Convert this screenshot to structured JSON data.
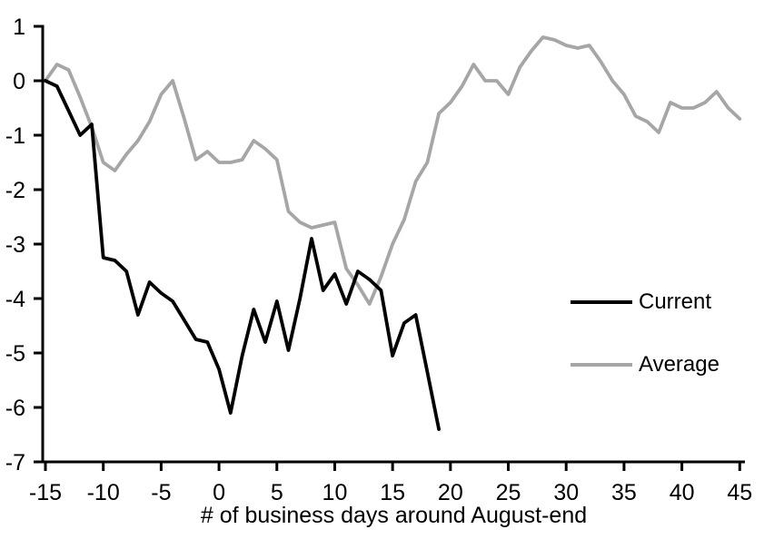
{
  "figure": {
    "background": "#ffffff",
    "axis_color": "#000000",
    "text_color": "#000000"
  },
  "legend": {
    "items": [
      {
        "label": "Current",
        "color": "#000000"
      },
      {
        "label": "Average",
        "color": "#a6a6a6"
      }
    ]
  },
  "chart_data": {
    "type": "line",
    "title": "",
    "xlabel": "# of business days around August-end",
    "ylabel": "",
    "xlim": [
      -15,
      45
    ],
    "ylim": [
      -7,
      1
    ],
    "x_ticks": [
      -15,
      -10,
      -5,
      0,
      5,
      10,
      15,
      20,
      25,
      30,
      35,
      40,
      45
    ],
    "y_ticks": [
      1,
      0,
      -1,
      -2,
      -3,
      -4,
      -5,
      -6,
      -7
    ],
    "grid": false,
    "legend_position": "right-middle",
    "series": [
      {
        "name": "Current",
        "color": "#000000",
        "stroke_width": 3.8,
        "x": [
          -15,
          -14,
          -13,
          -12,
          -11,
          -10,
          -9,
          -8,
          -7,
          -6,
          -5,
          -4,
          -3,
          -2,
          -1,
          0,
          1,
          2,
          3,
          4,
          5,
          6,
          7,
          8,
          9,
          10,
          11,
          12,
          13,
          14,
          15,
          16,
          17,
          18,
          19
        ],
        "y": [
          0,
          -0.1,
          -0.55,
          -1.0,
          -0.8,
          -3.25,
          -3.3,
          -3.5,
          -4.3,
          -3.7,
          -3.9,
          -4.05,
          -4.4,
          -4.75,
          -4.8,
          -5.3,
          -6.1,
          -5.05,
          -4.2,
          -4.8,
          -4.05,
          -4.95,
          -4.0,
          -2.9,
          -3.85,
          -3.55,
          -4.1,
          -3.5,
          -3.65,
          -3.85,
          -5.05,
          -4.45,
          -4.3,
          -5.35,
          -6.4
        ]
      },
      {
        "name": "Average",
        "color": "#a6a6a6",
        "stroke_width": 3.8,
        "x": [
          -15,
          -14,
          -13,
          -12,
          -11,
          -10,
          -9,
          -8,
          -7,
          -6,
          -5,
          -4,
          -3,
          -2,
          -1,
          0,
          1,
          2,
          3,
          4,
          5,
          6,
          7,
          8,
          9,
          10,
          11,
          12,
          13,
          14,
          15,
          16,
          17,
          18,
          19,
          20,
          21,
          22,
          23,
          24,
          25,
          26,
          27,
          28,
          29,
          30,
          31,
          32,
          33,
          34,
          35,
          36,
          37,
          38,
          39,
          40,
          41,
          42,
          43,
          44,
          45
        ],
        "y": [
          0,
          0.3,
          0.2,
          -0.3,
          -0.85,
          -1.5,
          -1.65,
          -1.35,
          -1.1,
          -0.75,
          -0.25,
          0,
          -0.7,
          -1.45,
          -1.3,
          -1.5,
          -1.5,
          -1.45,
          -1.1,
          -1.25,
          -1.45,
          -2.4,
          -2.6,
          -2.7,
          -2.65,
          -2.6,
          -3.45,
          -3.75,
          -4.1,
          -3.6,
          -3.0,
          -2.55,
          -1.85,
          -1.5,
          -0.6,
          -0.4,
          -0.1,
          0.3,
          0,
          0,
          -0.25,
          0.25,
          0.55,
          0.8,
          0.75,
          0.65,
          0.6,
          0.65,
          0.35,
          0,
          -0.25,
          -0.65,
          -0.75,
          -0.95,
          -0.4,
          -0.5,
          -0.5,
          -0.4,
          -0.2,
          -0.5,
          -0.7
        ]
      }
    ]
  }
}
